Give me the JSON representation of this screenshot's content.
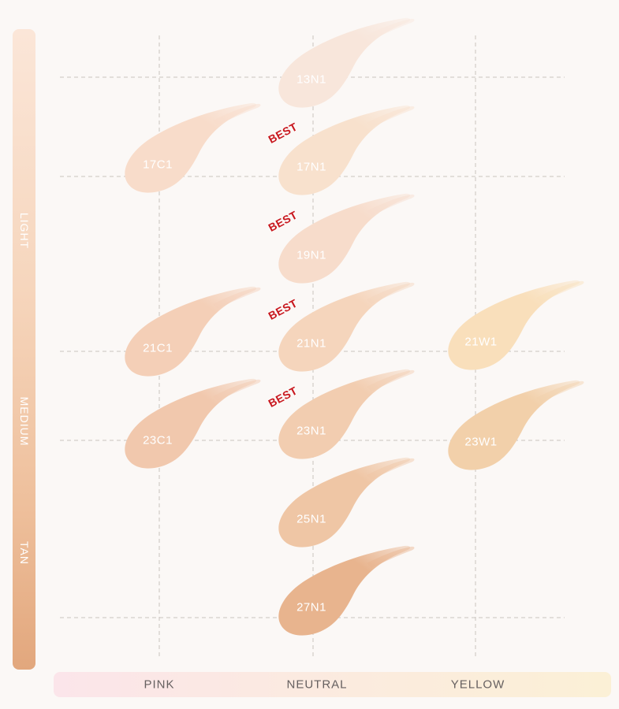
{
  "axes": {
    "depth_labels": [
      "LIGHT",
      "MEDIUM",
      "TAN"
    ],
    "undertone_labels": [
      "PINK",
      "NEUTRAL",
      "YELLOW"
    ]
  },
  "swatches": [
    {
      "shade": "13N1",
      "undertone": "NEUTRAL",
      "color": "#f8e6db",
      "best": false
    },
    {
      "shade": "17C1",
      "undertone": "PINK",
      "color": "#f8dcca",
      "best": false
    },
    {
      "shade": "17N1",
      "undertone": "NEUTRAL",
      "color": "#f8e1cd",
      "best": true
    },
    {
      "shade": "19N1",
      "undertone": "NEUTRAL",
      "color": "#f7dccb",
      "best": true
    },
    {
      "shade": "21C1",
      "undertone": "PINK",
      "color": "#f4cfb7",
      "best": false
    },
    {
      "shade": "21N1",
      "undertone": "NEUTRAL",
      "color": "#f5d5bc",
      "best": true
    },
    {
      "shade": "21W1",
      "undertone": "YELLOW",
      "color": "#f9dfbb",
      "best": false
    },
    {
      "shade": "23C1",
      "undertone": "PINK",
      "color": "#f1c8ad",
      "best": false
    },
    {
      "shade": "23N1",
      "undertone": "NEUTRAL",
      "color": "#f2cdb0",
      "best": true
    },
    {
      "shade": "23W1",
      "undertone": "YELLOW",
      "color": "#f2d0aa",
      "best": false
    },
    {
      "shade": "25N1",
      "undertone": "NEUTRAL",
      "color": "#efc6a5",
      "best": false
    },
    {
      "shade": "27N1",
      "undertone": "NEUTRAL",
      "color": "#e8b48e",
      "best": false
    }
  ],
  "best_label": "BEST",
  "colors": {
    "best_text": "#c8161d",
    "grid_line": "#c9c3bf",
    "axis_text": "#666060",
    "background": "#fbf8f6"
  }
}
